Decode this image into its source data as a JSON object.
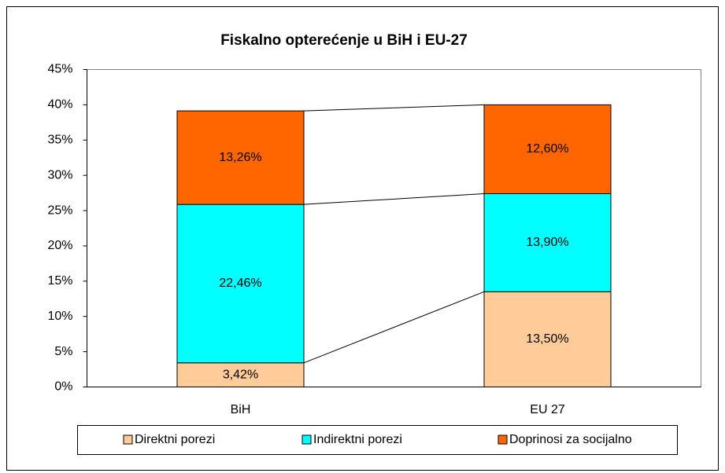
{
  "chart_data": {
    "type": "stacked_bar",
    "title": "Fiskalno opterećenje  u BiH i EU-27",
    "categories": [
      "BiH",
      "EU 27"
    ],
    "series": [
      {
        "name": "Direktni porezi",
        "color": "#FFCC99",
        "values": [
          3.42,
          13.5
        ],
        "value_labels": [
          "3,42%",
          "13,50%"
        ]
      },
      {
        "name": "Indirektni porezi",
        "color": "#00FFFF",
        "values": [
          22.46,
          13.9
        ],
        "value_labels": [
          "22,46%",
          "13,90%"
        ]
      },
      {
        "name": "Doprinosi za socijalno",
        "color": "#FF6600",
        "values": [
          13.26,
          12.6
        ],
        "value_labels": [
          "13,26%",
          "12,60%"
        ]
      }
    ],
    "ylim": [
      0,
      45
    ],
    "yticks": [
      {
        "value": 0,
        "label": "0%"
      },
      {
        "value": 5,
        "label": "5%"
      },
      {
        "value": 10,
        "label": "10%"
      },
      {
        "value": 15,
        "label": "15%"
      },
      {
        "value": 20,
        "label": "20%"
      },
      {
        "value": 25,
        "label": "25%"
      },
      {
        "value": 30,
        "label": "30%"
      },
      {
        "value": 35,
        "label": "35%"
      },
      {
        "value": 40,
        "label": "40%"
      },
      {
        "value": 45,
        "label": "45%"
      }
    ],
    "grid": false,
    "legend": "bottom"
  }
}
